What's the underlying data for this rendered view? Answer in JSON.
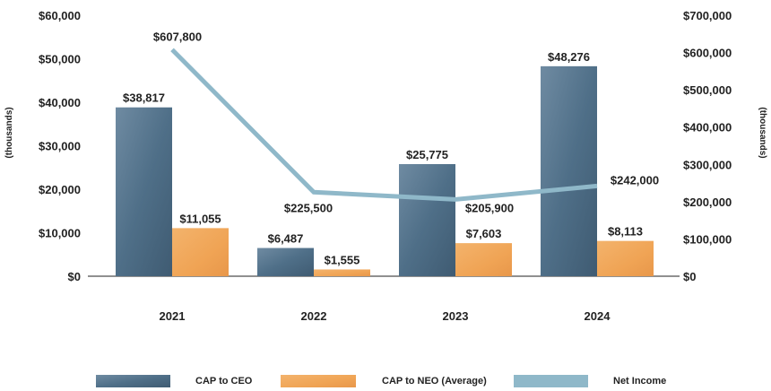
{
  "chart_data": {
    "type": "bar",
    "categories": [
      "2021",
      "2022",
      "2023",
      "2024"
    ],
    "series": [
      {
        "name": "CAP to CEO",
        "kind": "bar",
        "axis": "left",
        "values": [
          38817,
          6487,
          25775,
          48276
        ],
        "labels": [
          "$38,817",
          "$6,487",
          "$25,775",
          "$48,276"
        ]
      },
      {
        "name": "CAP to NEO (Average)",
        "kind": "bar",
        "axis": "left",
        "values": [
          11055,
          1555,
          7603,
          8113
        ],
        "labels": [
          "$11,055",
          "$1,555",
          "$7,603",
          "$8,113"
        ]
      },
      {
        "name": "Net Income",
        "kind": "line",
        "axis": "right",
        "values": [
          607800,
          225500,
          205900,
          242000
        ],
        "labels": [
          "$607,800",
          "$225,500",
          "$205,900",
          "$242,000"
        ]
      }
    ],
    "ylim_left": [
      0,
      60000
    ],
    "ylim_right": [
      0,
      700000
    ],
    "left_ticks": [
      "$0",
      "$10,000",
      "$20,000",
      "$30,000",
      "$40,000",
      "$50,000",
      "$60,000"
    ],
    "right_ticks": [
      "$0",
      "$100,000",
      "$200,000",
      "$300,000",
      "$400,000",
      "$500,000",
      "$600,000",
      "$700,000"
    ],
    "ylabel_left": "(thousands)",
    "ylabel_right": "(thousands)",
    "legend_position": "bottom"
  },
  "colors": {
    "ceo": "#4f6f88",
    "neo": "#f0a455",
    "net_income": "#8fb8c9",
    "axis": "#222222"
  }
}
